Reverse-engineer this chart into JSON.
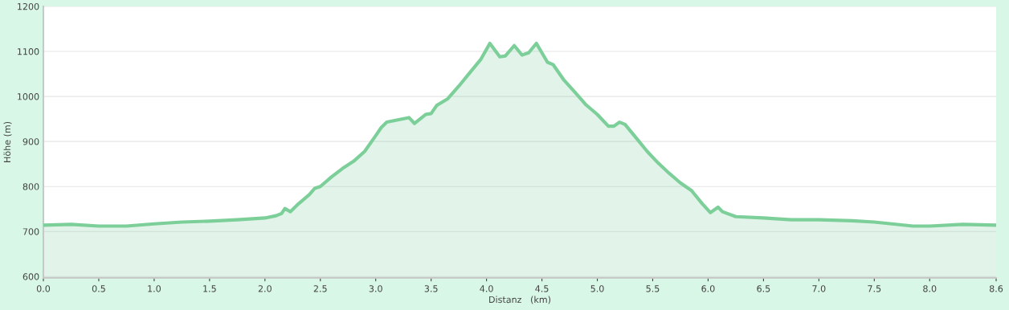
{
  "chart_data": {
    "type": "area",
    "xlabel": "Distanz   (km)",
    "ylabel": "Höhe (m)",
    "series": [
      {
        "color": "#7ccf99",
        "x": [
          0,
          0.25,
          0.5,
          0.75,
          1.0,
          1.25,
          1.5,
          1.75,
          2.0,
          2.1,
          2.15,
          2.18,
          2.23,
          2.3,
          2.4,
          2.45,
          2.5,
          2.6,
          2.7,
          2.8,
          2.9,
          3.0,
          3.05,
          3.1,
          3.2,
          3.3,
          3.35,
          3.45,
          3.5,
          3.55,
          3.65,
          3.75,
          3.85,
          3.95,
          4.03,
          4.12,
          4.17,
          4.25,
          4.32,
          4.38,
          4.45,
          4.55,
          4.6,
          4.7,
          4.8,
          4.9,
          5.0,
          5.1,
          5.15,
          5.2,
          5.25,
          5.35,
          5.45,
          5.55,
          5.65,
          5.75,
          5.85,
          5.95,
          6.02,
          6.09,
          6.13,
          6.25,
          6.5,
          6.75,
          7.0,
          7.3,
          7.5,
          7.85,
          8.0,
          8.3,
          8.6
        ],
        "values": [
          714,
          716,
          712,
          712,
          717,
          721,
          723,
          726,
          730,
          735,
          740,
          751,
          744,
          761,
          782,
          796,
          800,
          821,
          840,
          856,
          878,
          913,
          931,
          943,
          948,
          953,
          940,
          960,
          962,
          980,
          995,
          1023,
          1053,
          1083,
          1118,
          1088,
          1090,
          1113,
          1092,
          1097,
          1118,
          1076,
          1071,
          1036,
          1009,
          981,
          960,
          934,
          934,
          943,
          938,
          908,
          878,
          852,
          829,
          808,
          791,
          761,
          742,
          754,
          744,
          733,
          730,
          726,
          726,
          724,
          721,
          712,
          712,
          716,
          714
        ]
      }
    ],
    "xlim": [
      0,
      8.6
    ],
    "ylim": [
      597,
      1200
    ],
    "xticks": [
      {
        "value": 0,
        "label": "0.0"
      },
      0.5,
      {
        "value": 1,
        "label": "1.0"
      },
      1.5,
      {
        "value": 2,
        "label": "2.0"
      },
      2.5,
      {
        "value": 3,
        "label": "3.0"
      },
      3.5,
      {
        "value": 4,
        "label": "4.0"
      },
      4.5,
      {
        "value": 5,
        "label": "5.0"
      },
      5.5,
      {
        "value": 6,
        "label": "6.0"
      },
      6.5,
      {
        "value": 7,
        "label": "7.0"
      },
      7.5,
      {
        "value": 8,
        "label": "8.0"
      },
      8.6
    ],
    "yticks": [
      600,
      700,
      800,
      900,
      1000,
      1100,
      1200
    ],
    "grid": "y"
  }
}
